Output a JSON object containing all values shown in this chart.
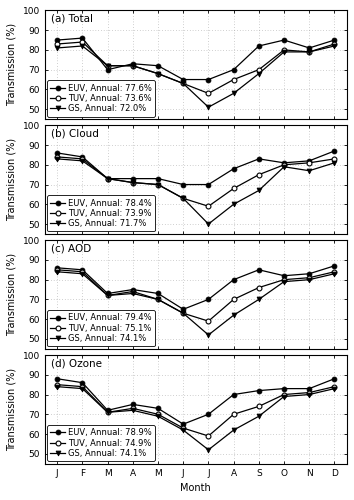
{
  "months": [
    "J",
    "F",
    "M",
    "A",
    "M",
    "J",
    "J",
    "A",
    "S",
    "O",
    "N",
    "D"
  ],
  "panels": [
    {
      "label": "(a) Total",
      "EUV": [
        85,
        86,
        70,
        73,
        72,
        65,
        65,
        70,
        82,
        85,
        81,
        85
      ],
      "TUV": [
        83,
        84,
        72,
        72,
        68,
        63,
        58,
        65,
        70,
        80,
        79,
        83
      ],
      "GS": [
        81,
        82,
        72,
        72,
        68,
        63,
        51,
        58,
        68,
        79,
        79,
        82
      ],
      "EUV_annual": "77.6%",
      "TUV_annual": "73.6%",
      "GS_annual": "72.0%"
    },
    {
      "label": "(b) Cloud",
      "EUV": [
        86,
        84,
        73,
        73,
        73,
        70,
        70,
        78,
        83,
        81,
        82,
        87
      ],
      "TUV": [
        84,
        83,
        73,
        71,
        70,
        63,
        59,
        68,
        75,
        80,
        81,
        83
      ],
      "GS": [
        83,
        82,
        73,
        71,
        70,
        63,
        50,
        60,
        67,
        79,
        77,
        81
      ],
      "EUV_annual": "78.4%",
      "TUV_annual": "73.9%",
      "GS_annual": "71.7%"
    },
    {
      "label": "(c) AOD",
      "EUV": [
        86,
        85,
        73,
        75,
        73,
        65,
        70,
        80,
        85,
        82,
        83,
        87
      ],
      "TUV": [
        85,
        84,
        72,
        74,
        70,
        63,
        59,
        70,
        76,
        80,
        81,
        84
      ],
      "GS": [
        84,
        83,
        72,
        73,
        70,
        63,
        52,
        62,
        70,
        79,
        80,
        83
      ],
      "EUV_annual": "79.4%",
      "TUV_annual": "75.1%",
      "GS_annual": "74.1%"
    },
    {
      "label": "(d) Ozone",
      "EUV": [
        88,
        86,
        72,
        75,
        73,
        65,
        70,
        80,
        82,
        83,
        83,
        88
      ],
      "TUV": [
        85,
        84,
        71,
        73,
        70,
        63,
        59,
        70,
        74,
        80,
        81,
        84
      ],
      "GS": [
        84,
        83,
        71,
        72,
        69,
        62,
        52,
        62,
        69,
        79,
        80,
        83
      ],
      "EUV_annual": "78.9%",
      "TUV_annual": "74.9%",
      "GS_annual": "74.1%"
    }
  ],
  "ylim": [
    45,
    100
  ],
  "yticks": [
    50,
    60,
    70,
    80,
    90,
    100
  ],
  "background_color": "#ffffff",
  "grid_color": "#999999",
  "fontsize_label": 7,
  "fontsize_tick": 6.5,
  "fontsize_legend": 6,
  "fontsize_panel": 7.5
}
